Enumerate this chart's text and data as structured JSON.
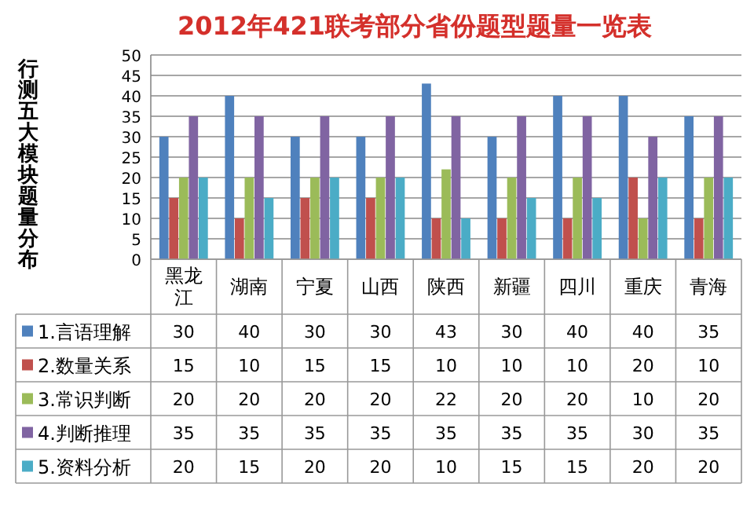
{
  "chart_data": {
    "type": "bar",
    "title": "2012年421联考部分省份题型题量一览表",
    "ylabel": "行测五大模块题量分布",
    "categories": [
      "黑龙江",
      "湖南",
      "宁夏",
      "山西",
      "陕西",
      "新疆",
      "四川",
      "重庆",
      "青海"
    ],
    "series": [
      {
        "name": "1.言语理解",
        "color": "#4f81bd",
        "values": [
          30,
          40,
          30,
          30,
          43,
          30,
          40,
          40,
          35
        ]
      },
      {
        "name": "2.数量关系",
        "color": "#c0504d",
        "values": [
          15,
          10,
          15,
          15,
          10,
          10,
          10,
          20,
          10
        ]
      },
      {
        "name": "3.常识判断",
        "color": "#9bbb59",
        "values": [
          20,
          20,
          20,
          20,
          22,
          20,
          20,
          10,
          20
        ]
      },
      {
        "name": "4.判断推理",
        "color": "#8064a2",
        "values": [
          35,
          35,
          35,
          35,
          35,
          35,
          35,
          30,
          35
        ]
      },
      {
        "name": "5.资料分析",
        "color": "#4bacc6",
        "values": [
          20,
          15,
          20,
          20,
          10,
          15,
          15,
          20,
          20
        ]
      }
    ],
    "ylim": [
      0,
      50
    ],
    "yticks": [
      0,
      5,
      10,
      15,
      20,
      25,
      30,
      35,
      40,
      45,
      50
    ],
    "grid": "y",
    "legend": "bottom",
    "data_labels": true
  }
}
